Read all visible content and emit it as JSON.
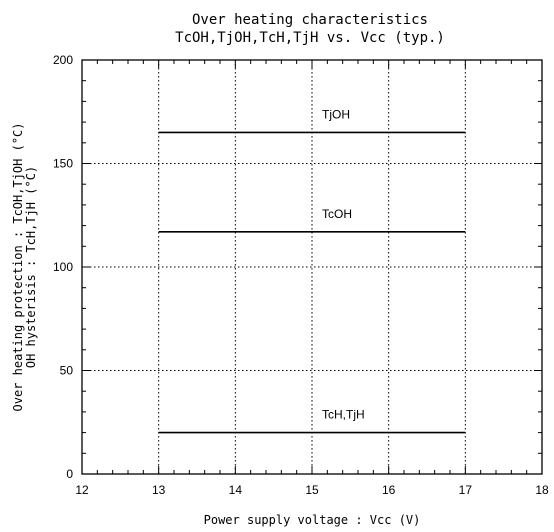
{
  "chart_data": {
    "type": "line",
    "title": "Over heating characteristics",
    "subtitle": "TcOH,TjOH,TcH,TjH vs. Vcc (typ.)",
    "xlabel": "Power supply voltage : Vcc (V)",
    "ylabel_line1": "Over heating protection : TcOH,TjOH (°C)",
    "ylabel_line2": "OH hysterisis : TcH,TjH (°C)",
    "xlim": [
      12,
      18
    ],
    "ylim": [
      0,
      200
    ],
    "xticks": [
      12,
      13,
      14,
      15,
      16,
      17,
      18
    ],
    "yticks": [
      0,
      50,
      100,
      150,
      200
    ],
    "grid": true,
    "series": [
      {
        "name": "TjOH",
        "x": [
          13,
          17
        ],
        "y": [
          165,
          165
        ]
      },
      {
        "name": "TcOH",
        "x": [
          13,
          17
        ],
        "y": [
          117,
          117
        ]
      },
      {
        "name": "TcH,TjH",
        "x": [
          13,
          17
        ],
        "y": [
          20,
          20
        ]
      }
    ]
  }
}
